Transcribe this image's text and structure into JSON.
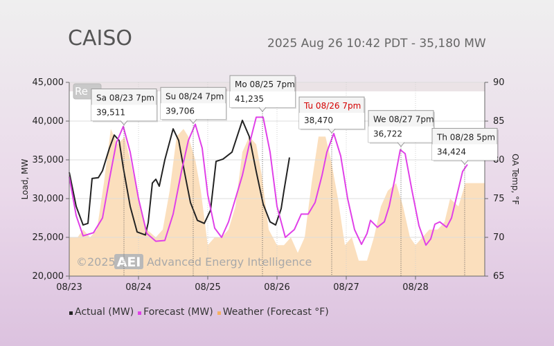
{
  "header": {
    "title": "CAISO",
    "subtitle": "2025 Aug 26 10:42 PDT - 35,180 MW"
  },
  "legend_items": [
    {
      "label": "Actual (MW)",
      "color": "#222222"
    },
    {
      "label": "Forecast (MW)",
      "color": "#e040e8"
    },
    {
      "label": "Weather (Forecast °F)",
      "color": "#f5b062"
    }
  ],
  "partial_button_text": "Re",
  "watermark": {
    "copyright": "©2025",
    "logo": "AEI",
    "company": "Advanced Energy Intelligence"
  },
  "chart_data": {
    "type": "line",
    "x_tick_labels": [
      "08/23",
      "08/24",
      "08/25",
      "08/26",
      "08/27",
      "08/28"
    ],
    "x_range_days": [
      0,
      6
    ],
    "left_axis": {
      "label": "Load, MW",
      "ticks": [
        "20,000",
        "25,000",
        "30,000",
        "35,000",
        "40,000",
        "45,000"
      ],
      "range": [
        20000,
        45000
      ]
    },
    "right_axis": {
      "label": "OA Temp, °F",
      "ticks": [
        "65",
        "70",
        "75",
        "80",
        "85",
        "90"
      ],
      "range": [
        65,
        90
      ]
    },
    "grid": true,
    "series": [
      {
        "name": "Actual (MW)",
        "color": "#222222",
        "points": [
          [
            0,
            33400
          ],
          [
            0.1,
            29000
          ],
          [
            0.2,
            26600
          ],
          [
            0.27,
            26800
          ],
          [
            0.33,
            32600
          ],
          [
            0.42,
            32700
          ],
          [
            0.48,
            33600
          ],
          [
            0.58,
            36500
          ],
          [
            0.65,
            38200
          ],
          [
            0.72,
            37500
          ],
          [
            0.78,
            34000
          ],
          [
            0.88,
            29000
          ],
          [
            0.98,
            25700
          ],
          [
            1.1,
            25300
          ],
          [
            1.14,
            26900
          ],
          [
            1.2,
            32000
          ],
          [
            1.25,
            32500
          ],
          [
            1.3,
            31600
          ],
          [
            1.38,
            35000
          ],
          [
            1.5,
            39000
          ],
          [
            1.58,
            37500
          ],
          [
            1.66,
            33600
          ],
          [
            1.75,
            29500
          ],
          [
            1.85,
            27200
          ],
          [
            1.95,
            26800
          ],
          [
            2.04,
            28500
          ],
          [
            2.12,
            34800
          ],
          [
            2.22,
            35100
          ],
          [
            2.35,
            36000
          ],
          [
            2.5,
            40100
          ],
          [
            2.6,
            38000
          ],
          [
            2.7,
            33500
          ],
          [
            2.8,
            29300
          ],
          [
            2.9,
            27000
          ],
          [
            2.98,
            26600
          ],
          [
            3.06,
            28700
          ],
          [
            3.1,
            31000
          ],
          [
            3.18,
            35300
          ]
        ]
      },
      {
        "name": "Forecast (MW)",
        "color": "#e040e8",
        "points": [
          [
            0,
            32800
          ],
          [
            0.1,
            27800
          ],
          [
            0.2,
            25200
          ],
          [
            0.35,
            25600
          ],
          [
            0.48,
            27500
          ],
          [
            0.58,
            32500
          ],
          [
            0.68,
            37200
          ],
          [
            0.78,
            39300
          ],
          [
            0.88,
            36000
          ],
          [
            1.0,
            30000
          ],
          [
            1.12,
            25500
          ],
          [
            1.25,
            24500
          ],
          [
            1.38,
            24600
          ],
          [
            1.5,
            28000
          ],
          [
            1.62,
            33500
          ],
          [
            1.72,
            37500
          ],
          [
            1.82,
            39600
          ],
          [
            1.92,
            36500
          ],
          [
            2.0,
            30500
          ],
          [
            2.1,
            26200
          ],
          [
            2.2,
            25000
          ],
          [
            2.3,
            27000
          ],
          [
            2.4,
            30000
          ],
          [
            2.5,
            33000
          ],
          [
            2.6,
            37000
          ],
          [
            2.7,
            40500
          ],
          [
            2.8,
            40500
          ],
          [
            2.9,
            36000
          ],
          [
            3.0,
            29000
          ],
          [
            3.12,
            25000
          ],
          [
            3.25,
            26000
          ],
          [
            3.35,
            28000
          ],
          [
            3.45,
            28000
          ],
          [
            3.55,
            29500
          ],
          [
            3.65,
            33000
          ],
          [
            3.72,
            36000
          ],
          [
            3.82,
            38400
          ],
          [
            3.92,
            35500
          ],
          [
            4.02,
            30000
          ],
          [
            4.12,
            26000
          ],
          [
            4.22,
            24100
          ],
          [
            4.3,
            25500
          ],
          [
            4.35,
            27200
          ],
          [
            4.45,
            26300
          ],
          [
            4.55,
            27000
          ],
          [
            4.62,
            29000
          ],
          [
            4.7,
            32500
          ],
          [
            4.78,
            36300
          ],
          [
            4.85,
            35800
          ],
          [
            4.95,
            31000
          ],
          [
            5.05,
            26500
          ],
          [
            5.15,
            24000
          ],
          [
            5.22,
            24800
          ],
          [
            5.28,
            26700
          ],
          [
            5.35,
            27000
          ],
          [
            5.45,
            26300
          ],
          [
            5.52,
            27500
          ],
          [
            5.6,
            30500
          ],
          [
            5.68,
            33500
          ],
          [
            5.75,
            34400
          ]
        ]
      },
      {
        "name": "Weather (Forecast °F)",
        "color": "#f5b062",
        "type": "area",
        "axis": "right",
        "points": [
          [
            0,
            70
          ],
          [
            0.12,
            70
          ],
          [
            0.2,
            71
          ],
          [
            0.3,
            70
          ],
          [
            0.4,
            71
          ],
          [
            0.5,
            77
          ],
          [
            0.6,
            84
          ],
          [
            0.7,
            82
          ],
          [
            0.8,
            83
          ],
          [
            0.88,
            80
          ],
          [
            1.0,
            75
          ],
          [
            1.12,
            71
          ],
          [
            1.25,
            70
          ],
          [
            1.35,
            71
          ],
          [
            1.45,
            76
          ],
          [
            1.55,
            83
          ],
          [
            1.65,
            84
          ],
          [
            1.72,
            83
          ],
          [
            1.82,
            80
          ],
          [
            1.9,
            76
          ],
          [
            2.0,
            69
          ],
          [
            2.1,
            70
          ],
          [
            2.2,
            70
          ],
          [
            2.3,
            71
          ],
          [
            2.4,
            74
          ],
          [
            2.5,
            81
          ],
          [
            2.6,
            83
          ],
          [
            2.7,
            82
          ],
          [
            2.78,
            78
          ],
          [
            2.88,
            71
          ],
          [
            3.0,
            69
          ],
          [
            3.1,
            69
          ],
          [
            3.2,
            70
          ],
          [
            3.3,
            68
          ],
          [
            3.4,
            70
          ],
          [
            3.5,
            77
          ],
          [
            3.6,
            83
          ],
          [
            3.7,
            83
          ],
          [
            3.78,
            80
          ],
          [
            3.88,
            75
          ],
          [
            3.98,
            69
          ],
          [
            4.08,
            70
          ],
          [
            4.18,
            67
          ],
          [
            4.3,
            67
          ],
          [
            4.4,
            70
          ],
          [
            4.5,
            74
          ],
          [
            4.6,
            76
          ],
          [
            4.72,
            77
          ],
          [
            4.82,
            74
          ],
          [
            4.92,
            70
          ],
          [
            5.0,
            69
          ],
          [
            5.1,
            70
          ],
          [
            5.2,
            71
          ],
          [
            5.32,
            71
          ],
          [
            5.42,
            72
          ],
          [
            5.5,
            75
          ],
          [
            5.62,
            74
          ],
          [
            5.72,
            77
          ],
          [
            5.8,
            77
          ],
          [
            6.0,
            77
          ]
        ]
      }
    ],
    "peak_annotations": [
      {
        "label": "Sa 08/23 7pm",
        "value": "39,511",
        "x": 0.79,
        "y": 39511,
        "highlight": false
      },
      {
        "label": "Su 08/24 7pm",
        "value": "39,706",
        "x": 1.79,
        "y": 39706,
        "highlight": false
      },
      {
        "label": "Mo 08/25 7pm",
        "value": "41,235",
        "x": 2.79,
        "y": 41235,
        "highlight": false
      },
      {
        "label": "Tu 08/26 7pm",
        "value": "38,470",
        "x": 3.79,
        "y": 38470,
        "highlight": true
      },
      {
        "label": "We 08/27 7pm",
        "value": "36,722",
        "x": 4.79,
        "y": 36722,
        "highlight": false
      },
      {
        "label": "Th 08/28 5pm",
        "value": "34,424",
        "x": 5.71,
        "y": 34424,
        "highlight": false
      }
    ]
  }
}
